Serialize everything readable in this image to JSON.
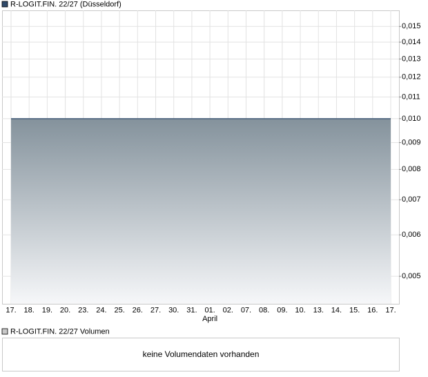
{
  "chart_data": {
    "type": "area",
    "title": "R-LOGIT.FIN. 22/27 (Düsseldorf)",
    "categories": [
      "17.",
      "18.",
      "19.",
      "20.",
      "23.",
      "24.",
      "25.",
      "26.",
      "27.",
      "30.",
      "31.",
      "01.",
      "02.",
      "07.",
      "08.",
      "09.",
      "10.",
      "13.",
      "14.",
      "15.",
      "16.",
      "17."
    ],
    "months": [
      null,
      null,
      null,
      null,
      null,
      null,
      null,
      null,
      null,
      null,
      null,
      "April",
      null,
      null,
      null,
      null,
      null,
      null,
      null,
      null,
      null,
      null
    ],
    "series": [
      {
        "name": "R-LOGIT.FIN. 22/27 (Düsseldorf)",
        "color": "#2f4a6a",
        "values": [
          0.01,
          0.01,
          0.01,
          0.01,
          0.01,
          0.01,
          0.01,
          0.01,
          0.01,
          0.01,
          0.01,
          0.01,
          0.01,
          0.01,
          0.01,
          0.01,
          0.01,
          0.01,
          0.01,
          0.01,
          0.01,
          0.01
        ]
      }
    ],
    "fill_gradient": [
      "#84929c",
      "#f6f7f9"
    ],
    "log_y": true,
    "ylim": [
      0.00443,
      0.0161
    ],
    "yticks": [
      {
        "value": 0.005,
        "label": "0,005"
      },
      {
        "value": 0.006,
        "label": "0,006"
      },
      {
        "value": 0.007,
        "label": "0,007"
      },
      {
        "value": 0.008,
        "label": "0,008"
      },
      {
        "value": 0.009,
        "label": "0,009"
      },
      {
        "value": 0.01,
        "label": "0,010"
      },
      {
        "value": 0.011,
        "label": "0,011"
      },
      {
        "value": 0.012,
        "label": "0,012"
      },
      {
        "value": 0.013,
        "label": "0,013"
      },
      {
        "value": 0.014,
        "label": "0,014"
      },
      {
        "value": 0.015,
        "label": "0,015"
      }
    ],
    "grid": true
  },
  "volume_panel": {
    "title": "R-LOGIT.FIN. 22/27 Volumen",
    "message": "keine Volumendaten vorhanden"
  }
}
